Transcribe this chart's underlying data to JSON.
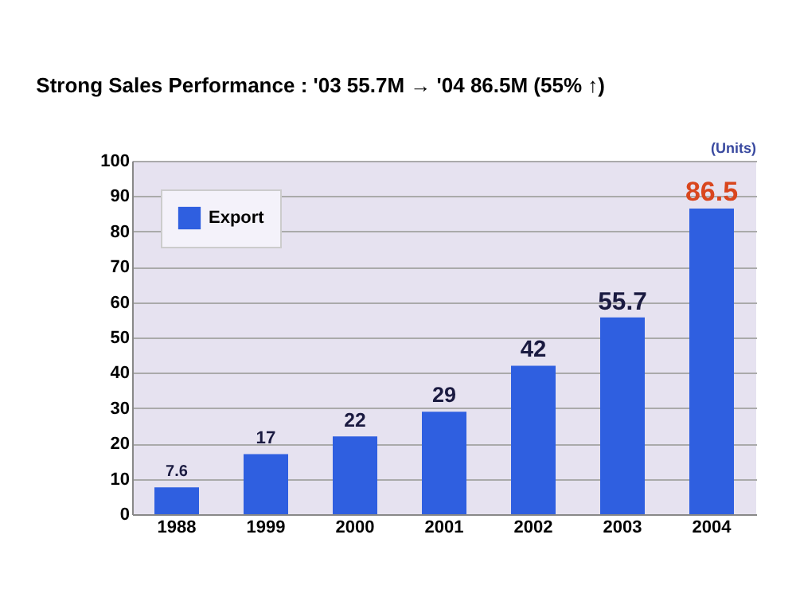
{
  "chart_data": {
    "type": "bar",
    "title": "Strong Sales Performance : '03  55.7M → '04  86.5M (55% ↑)",
    "categories": [
      "1988",
      "1999",
      "2000",
      "2001",
      "2002",
      "2003",
      "2004"
    ],
    "series": [
      {
        "name": "Export",
        "color": "#2f5fe0",
        "values": [
          7.6,
          17,
          22,
          29,
          42,
          55.7,
          86.5
        ]
      }
    ],
    "ylim": [
      0,
      100
    ],
    "yticks": [
      0,
      10,
      20,
      30,
      40,
      50,
      60,
      70,
      80,
      90,
      100
    ],
    "grid": "y",
    "legend": "top left",
    "data_labels": true,
    "annotations": [
      "(Units)"
    ]
  }
}
